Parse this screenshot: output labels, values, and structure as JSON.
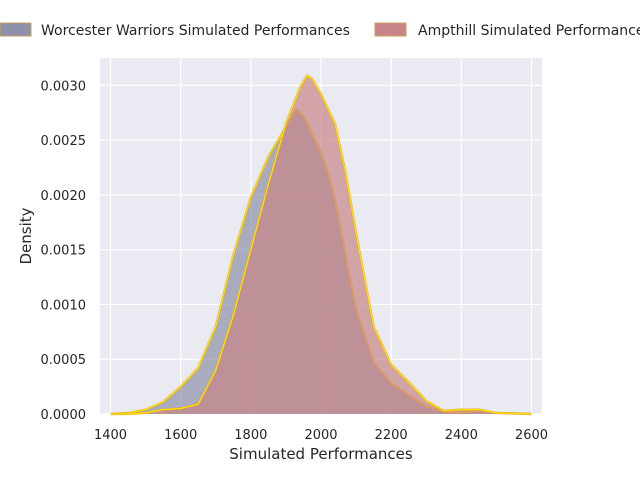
{
  "chart_data": {
    "type": "area",
    "xlabel": "Simulated Performances",
    "ylabel": "Density",
    "xlim": [
      1370,
      2630
    ],
    "ylim": [
      0,
      0.00325
    ],
    "xticks": [
      1400,
      1600,
      1800,
      2000,
      2200,
      2400,
      2600
    ],
    "xtick_labels": [
      "1400",
      "1600",
      "1800",
      "2000",
      "2200",
      "2400",
      "2600"
    ],
    "yticks": [
      0,
      0.0005,
      0.001,
      0.0015,
      0.002,
      0.0025,
      0.003
    ],
    "ytick_labels": [
      "0.0000",
      "0.0005",
      "0.0010",
      "0.0015",
      "0.0020",
      "0.0025",
      "0.0030"
    ],
    "grid": true,
    "legend_position": "top",
    "outline_color": "#ffe600",
    "series": [
      {
        "name": "Worcester Warriors Simulated Performances",
        "fill": "#8d92a8",
        "legend_edge": "#c8a060",
        "points": [
          [
            1400,
            0
          ],
          [
            1450,
            1e-05
          ],
          [
            1500,
            4e-05
          ],
          [
            1550,
            0.00011
          ],
          [
            1600,
            0.00025
          ],
          [
            1650,
            0.00042
          ],
          [
            1700,
            0.0008
          ],
          [
            1750,
            0.00145
          ],
          [
            1800,
            0.00198
          ],
          [
            1850,
            0.00235
          ],
          [
            1900,
            0.00262
          ],
          [
            1930,
            0.00278
          ],
          [
            1950,
            0.00272
          ],
          [
            1975,
            0.00255
          ],
          [
            2000,
            0.00238
          ],
          [
            2025,
            0.00215
          ],
          [
            2050,
            0.0018
          ],
          [
            2075,
            0.00135
          ],
          [
            2100,
            0.00095
          ],
          [
            2150,
            0.00047
          ],
          [
            2200,
            0.00028
          ],
          [
            2250,
            0.00017
          ],
          [
            2300,
            7e-05
          ],
          [
            2350,
            2e-05
          ],
          [
            2400,
            1e-05
          ],
          [
            2450,
            3e-05
          ],
          [
            2500,
            1e-05
          ],
          [
            2600,
            0
          ]
        ]
      },
      {
        "name": "Ampthill Simulated Performances",
        "fill": "#c88488",
        "legend_edge": "#c8a060",
        "points": [
          [
            1400,
            0
          ],
          [
            1450,
            0
          ],
          [
            1500,
            1e-05
          ],
          [
            1550,
            4e-05
          ],
          [
            1600,
            5e-05
          ],
          [
            1650,
            9e-05
          ],
          [
            1700,
            0.0004
          ],
          [
            1750,
            0.0009
          ],
          [
            1800,
            0.0015
          ],
          [
            1850,
            0.0021
          ],
          [
            1900,
            0.00265
          ],
          [
            1940,
            0.00298
          ],
          [
            1960,
            0.00309
          ],
          [
            1975,
            0.00306
          ],
          [
            2000,
            0.00292
          ],
          [
            2040,
            0.00265
          ],
          [
            2070,
            0.0022
          ],
          [
            2100,
            0.00165
          ],
          [
            2150,
            0.0008
          ],
          [
            2200,
            0.00045
          ],
          [
            2250,
            0.00029
          ],
          [
            2300,
            0.00012
          ],
          [
            2350,
            3e-05
          ],
          [
            2400,
            4e-05
          ],
          [
            2450,
            4e-05
          ],
          [
            2500,
            1e-05
          ],
          [
            2600,
            0
          ]
        ]
      }
    ]
  }
}
